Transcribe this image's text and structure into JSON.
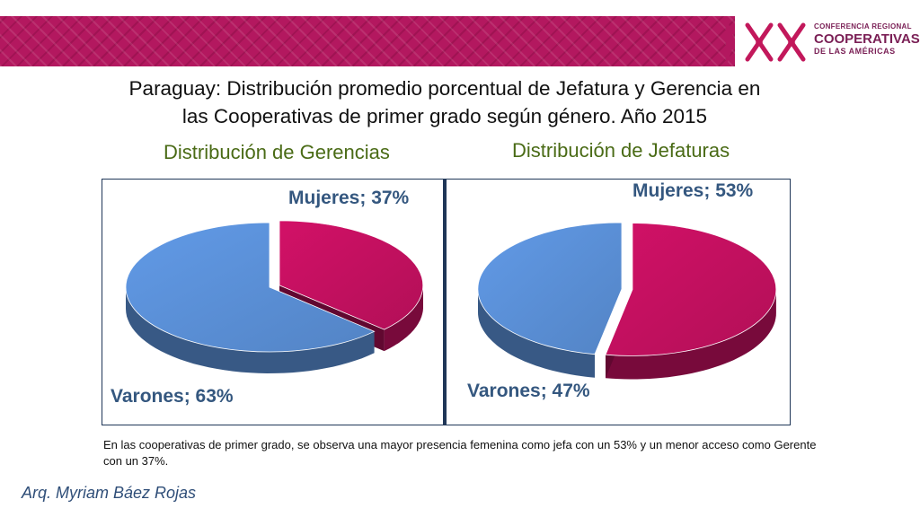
{
  "header": {
    "logo_line1": "CONFERENCIA REGIONAL",
    "logo_line2": "COOPERATIVAS",
    "logo_line3": "DE LAS AMÉRICAS"
  },
  "title_line1": "Paraguay: Distribución promedio porcentual de Jefatura y Gerencia en",
  "title_line2": "las Cooperativas de primer grado según género. Año 2015",
  "colors": {
    "mujeres": "#c2105f",
    "varones": "#5a8fd6",
    "banner": "#b3185f"
  },
  "chart_data": [
    {
      "type": "pie",
      "title": "Distribución de Gerencias",
      "categories": [
        "Mujeres",
        "Varones"
      ],
      "values": [
        37,
        63
      ],
      "data_labels": [
        "Mujeres; 37%",
        "Varones; 63%"
      ],
      "colors": [
        "#c2105f",
        "#5a8fd6"
      ],
      "exploded": "Mujeres",
      "style": "3d"
    },
    {
      "type": "pie",
      "title": "Distribución de Jefaturas",
      "categories": [
        "Mujeres",
        "Varones"
      ],
      "values": [
        53,
        47
      ],
      "data_labels": [
        "Mujeres; 53%",
        "Varones; 47%"
      ],
      "colors": [
        "#c2105f",
        "#5a8fd6"
      ],
      "exploded": "Mujeres",
      "style": "3d"
    }
  ],
  "note": "En las cooperativas de primer grado, se observa una mayor presencia femenina como jefa  con un 53%  y un menor acceso como Gerente con un 37%.",
  "author": "Arq. Myriam Báez Rojas"
}
